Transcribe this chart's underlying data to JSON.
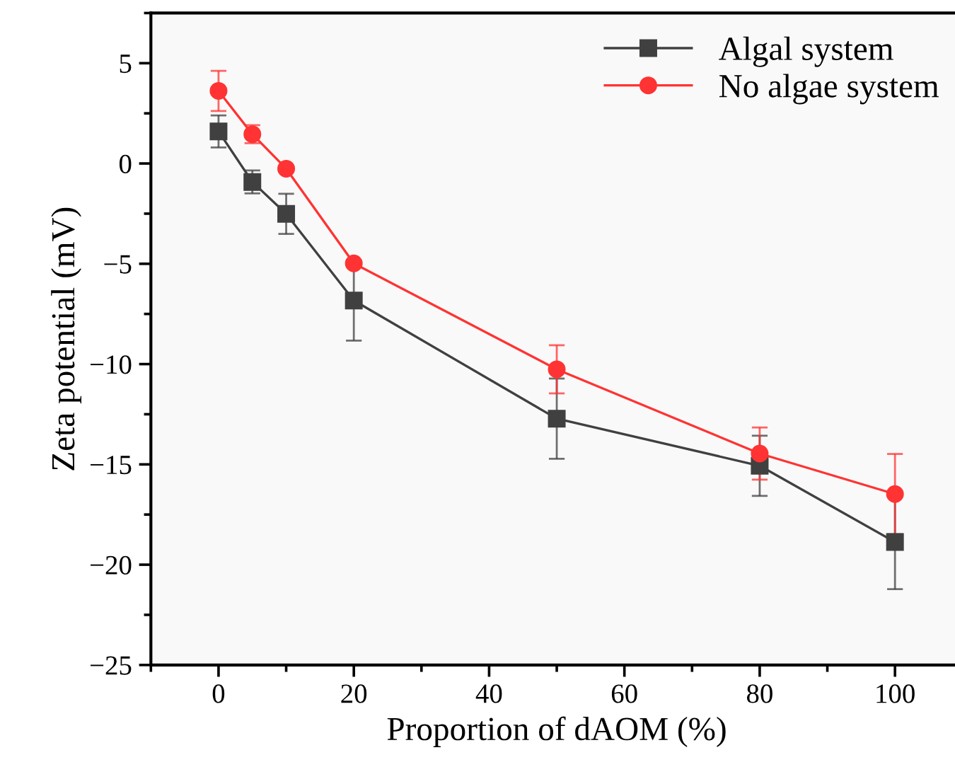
{
  "chart_data": {
    "type": "line",
    "xlabel": "Proportion of dAOM (%)",
    "ylabel": "Zeta potential (mV)",
    "x": [
      0,
      5,
      10,
      20,
      50,
      80,
      100
    ],
    "xlim": [
      -10,
      110
    ],
    "xticks": [
      0,
      20,
      40,
      60,
      80,
      100
    ],
    "ylim": [
      -25,
      7.5
    ],
    "yticks": [
      {
        "value": -25,
        "label": "−25"
      },
      {
        "value": -20,
        "label": "−20"
      },
      {
        "value": -15,
        "label": "−15"
      },
      {
        "value": -10,
        "label": "−10"
      },
      {
        "value": -5,
        "label": "−5"
      },
      0,
      5
    ],
    "grid": false,
    "legend": "top right",
    "line_style": "solid",
    "series": [
      {
        "name": "Algal system",
        "color": "#404040",
        "marker": "square",
        "values": [
          1.6,
          -0.92,
          -2.51,
          -6.83,
          -12.72,
          -15.07,
          -18.87
        ],
        "errors": [
          0.8,
          0.57,
          1.0,
          2.0,
          2.0,
          1.5,
          2.35
        ]
      },
      {
        "name": "No algae system",
        "color": "#ff3333",
        "marker": "circle",
        "values": [
          3.62,
          1.46,
          -0.26,
          -4.98,
          -10.26,
          -14.46,
          -16.48
        ],
        "errors": [
          1.0,
          0.45,
          null,
          null,
          1.2,
          1.3,
          2.0
        ]
      }
    ]
  }
}
